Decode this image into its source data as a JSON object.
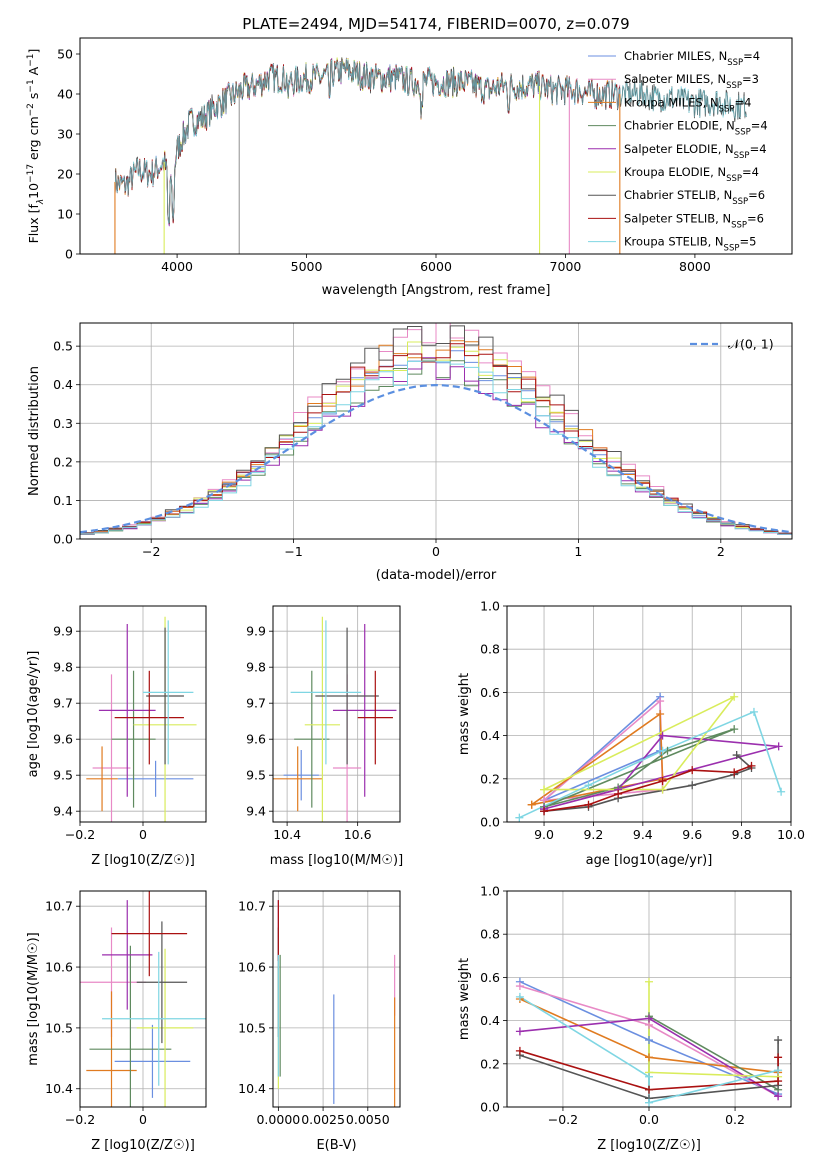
{
  "figure_title": "PLATE=2494, MJD=54174, FIBERID=0070, z=0.079",
  "colors": {
    "Chabrier MILES": "#6b8fe0",
    "Salpeter MILES": "#e88ac6",
    "Kroupa MILES": "#e07b20",
    "Chabrier ELODIE": "#5f8a5f",
    "Salpeter ELODIE": "#9b2fae",
    "Kroupa ELODIE": "#d9ec5c",
    "Chabrier STELIB": "#555555",
    "Salpeter STELIB": "#aa1111",
    "Kroupa STELIB": "#7fd6e3"
  },
  "chart_data": [
    {
      "id": "spectrum",
      "type": "line",
      "title": "PLATE=2494, MJD=54174, FIBERID=0070, z=0.079",
      "xlabel": "wavelength [Angstrom, rest frame]",
      "ylabel_parts": [
        "Flux [f",
        "λ",
        "10",
        "−17",
        " erg cm",
        "−2",
        " s",
        "−1",
        " A",
        "−1",
        "]"
      ],
      "xlim": [
        3250,
        8750
      ],
      "ylim": [
        0,
        54
      ],
      "xticks": [
        4000,
        5000,
        6000,
        7000,
        8000
      ],
      "yticks": [
        0,
        10,
        20,
        30,
        40,
        50
      ],
      "grid": false,
      "legend_position": "top-right",
      "legend": [
        {
          "label": "Chabrier MILES, N",
          "sub": "SSP",
          "value": "=4"
        },
        {
          "label": "Salpeter MILES, N",
          "sub": "SSP",
          "value": "=3"
        },
        {
          "label": "Kroupa MILES, N",
          "sub": "SSP",
          "value": "=4"
        },
        {
          "label": "Chabrier ELODIE, N",
          "sub": "SSP",
          "value": "=4"
        },
        {
          "label": "Salpeter ELODIE, N",
          "sub": "SSP",
          "value": "=4"
        },
        {
          "label": "Kroupa ELODIE, N",
          "sub": "SSP",
          "value": "=4"
        },
        {
          "label": "Chabrier STELIB, N",
          "sub": "SSP",
          "value": "=6"
        },
        {
          "label": "Salpeter STELIB, N",
          "sub": "SSP",
          "value": "=6"
        },
        {
          "label": "Kroupa STELIB, N",
          "sub": "SSP",
          "value": "=5"
        }
      ],
      "continuum": [
        [
          3520,
          18
        ],
        [
          3600,
          17
        ],
        [
          3700,
          21
        ],
        [
          3800,
          20
        ],
        [
          3900,
          23
        ],
        [
          3950,
          16
        ],
        [
          4000,
          26
        ],
        [
          4100,
          33
        ],
        [
          4200,
          34
        ],
        [
          4300,
          37
        ],
        [
          4400,
          39
        ],
        [
          4500,
          41
        ],
        [
          4600,
          42
        ],
        [
          4700,
          44
        ],
        [
          4800,
          44
        ],
        [
          4900,
          43
        ],
        [
          5000,
          44
        ],
        [
          5100,
          44
        ],
        [
          5200,
          45
        ],
        [
          5300,
          46
        ],
        [
          5400,
          45
        ],
        [
          5500,
          44
        ],
        [
          5600,
          44
        ],
        [
          5700,
          44
        ],
        [
          5800,
          43
        ],
        [
          5900,
          43
        ],
        [
          6000,
          43
        ],
        [
          6100,
          43
        ],
        [
          6200,
          43
        ],
        [
          6300,
          42
        ],
        [
          6400,
          41
        ],
        [
          6500,
          42
        ],
        [
          6600,
          42
        ],
        [
          6700,
          42
        ],
        [
          6800,
          42
        ],
        [
          6900,
          41
        ],
        [
          7000,
          41
        ],
        [
          7100,
          41
        ],
        [
          7200,
          40
        ],
        [
          7300,
          40
        ],
        [
          7400,
          40
        ],
        [
          7500,
          40
        ],
        [
          7600,
          40
        ],
        [
          7700,
          39
        ],
        [
          7800,
          39
        ],
        [
          7900,
          38
        ],
        [
          8000,
          38
        ],
        [
          8100,
          38
        ],
        [
          8200,
          38
        ],
        [
          8300,
          37
        ],
        [
          8400,
          37
        ]
      ],
      "model_ranges": [
        {
          "name": "Chabrier MILES",
          "x": [
            3520,
            7420
          ]
        },
        {
          "name": "Salpeter MILES",
          "x": [
            3520,
            7420
          ]
        },
        {
          "name": "Kroupa MILES",
          "x": [
            3520,
            7420
          ]
        },
        {
          "name": "Chabrier ELODIE",
          "x": [
            3900,
            6800
          ]
        },
        {
          "name": "Salpeter ELODIE",
          "x": [
            3900,
            6800
          ]
        },
        {
          "name": "Kroupa ELODIE",
          "x": [
            3900,
            6800
          ]
        },
        {
          "name": "Chabrier STELIB",
          "x": [
            3520,
            8400
          ]
        },
        {
          "name": "Salpeter STELIB",
          "x": [
            3520,
            7420
          ]
        },
        {
          "name": "Kroupa STELIB",
          "x": [
            3520,
            8400
          ]
        }
      ],
      "drop_lines": [
        {
          "x": 3520
        },
        {
          "x": 3900
        },
        {
          "x": 4480
        },
        {
          "x": 6800
        },
        {
          "x": 7030
        },
        {
          "x": 7420
        }
      ]
    },
    {
      "id": "residuals",
      "type": "histogram",
      "xlabel": "(data-model)/error",
      "ylabel": "Normed distribution",
      "xlim": [
        -2.5,
        2.5
      ],
      "ylim": [
        0,
        0.56
      ],
      "xticks": [
        -2,
        -1,
        0,
        1,
        2
      ],
      "yticks": [
        0.0,
        0.1,
        0.2,
        0.3,
        0.4,
        0.5
      ],
      "grid": true,
      "legend_position": "top-right",
      "legend": [
        {
          "label": "𝒩(0, 1)"
        }
      ],
      "bin_width": 0.1
    },
    {
      "id": "age_vs_Z",
      "type": "errorbar",
      "xlabel": "Z [log10(Z/Z☉)]",
      "ylabel": "age [log10(age/yr)]",
      "xlim": [
        -0.2,
        0.2
      ],
      "ylim": [
        9.37,
        9.97
      ],
      "xticks": [
        -0.2,
        0.0
      ],
      "yticks": [
        9.4,
        9.5,
        9.6,
        9.7,
        9.8,
        9.9
      ],
      "grid": true,
      "points": [
        {
          "name": "Chabrier MILES",
          "x": 0.04,
          "xerr": 0.12,
          "y": 9.49,
          "yerr": 0.05
        },
        {
          "name": "Salpeter MILES",
          "x": -0.1,
          "xerr": 0.06,
          "y": 9.52,
          "yerr": 0.26
        },
        {
          "name": "Kroupa MILES",
          "x": -0.13,
          "xerr": 0.05,
          "y": 9.49,
          "yerr": 0.09
        },
        {
          "name": "Chabrier ELODIE",
          "x": -0.03,
          "xerr": 0.07,
          "y": 9.6,
          "yerr": 0.19
        },
        {
          "name": "Salpeter ELODIE",
          "x": -0.05,
          "xerr": 0.09,
          "y": 9.68,
          "yerr": 0.24
        },
        {
          "name": "Kroupa ELODIE",
          "x": 0.07,
          "xerr": 0.1,
          "y": 9.64,
          "yerr": 0.3
        },
        {
          "name": "Chabrier STELIB",
          "x": 0.07,
          "xerr": 0.06,
          "y": 9.72,
          "yerr": 0.19
        },
        {
          "name": "Salpeter STELIB",
          "x": 0.02,
          "xerr": 0.11,
          "y": 9.66,
          "yerr": 0.13
        },
        {
          "name": "Kroupa STELIB",
          "x": 0.08,
          "xerr": 0.08,
          "y": 9.73,
          "yerr": 0.2
        }
      ]
    },
    {
      "id": "age_vs_mass",
      "type": "errorbar",
      "xlabel": "mass [log10(M/M☉)]",
      "ylabel": "",
      "xlim": [
        10.36,
        10.72
      ],
      "ylim": [
        9.37,
        9.97
      ],
      "xticks": [
        10.4,
        10.6
      ],
      "yticks": [
        9.4,
        9.5,
        9.6,
        9.7,
        9.8,
        9.9
      ],
      "grid": true,
      "points": [
        {
          "name": "Chabrier MILES",
          "x": 10.44,
          "xerr": 0.05,
          "y": 9.5,
          "yerr": 0.07
        },
        {
          "name": "Salpeter MILES",
          "x": 10.57,
          "xerr": 0.04,
          "y": 9.52,
          "yerr": 0.26
        },
        {
          "name": "Kroupa MILES",
          "x": 10.43,
          "xerr": 0.07,
          "y": 9.49,
          "yerr": 0.09
        },
        {
          "name": "Chabrier ELODIE",
          "x": 10.47,
          "xerr": 0.05,
          "y": 9.6,
          "yerr": 0.19
        },
        {
          "name": "Salpeter ELODIE",
          "x": 10.62,
          "xerr": 0.09,
          "y": 9.68,
          "yerr": 0.24
        },
        {
          "name": "Kroupa ELODIE",
          "x": 10.5,
          "xerr": 0.05,
          "y": 9.64,
          "yerr": 0.3
        },
        {
          "name": "Chabrier STELIB",
          "x": 10.57,
          "xerr": 0.09,
          "y": 9.72,
          "yerr": 0.19
        },
        {
          "name": "Salpeter STELIB",
          "x": 10.65,
          "xerr": 0.05,
          "y": 9.66,
          "yerr": 0.13
        },
        {
          "name": "Kroupa STELIB",
          "x": 10.51,
          "xerr": 0.1,
          "y": 9.73,
          "yerr": 0.2
        }
      ]
    },
    {
      "id": "weight_vs_age",
      "type": "line",
      "xlabel": "age [log10(age/yr)]",
      "ylabel": "mass weight",
      "xlim": [
        8.85,
        10.0
      ],
      "ylim": [
        0,
        1.0
      ],
      "xticks": [
        9.0,
        9.2,
        9.4,
        9.6,
        9.8,
        10.0
      ],
      "yticks": [
        0.0,
        0.2,
        0.4,
        0.6,
        0.8,
        1.0
      ],
      "grid": true,
      "series": [
        {
          "name": "Chabrier MILES",
          "x": [
            9.0,
            9.47,
            9.47,
            9.0
          ],
          "y": [
            0.1,
            0.58,
            0.33,
            0.1
          ]
        },
        {
          "name": "Salpeter MILES",
          "x": [
            9.0,
            9.47,
            9.48,
            9.0
          ],
          "y": [
            0.1,
            0.56,
            0.15,
            0.1
          ]
        },
        {
          "name": "Kroupa MILES",
          "x": [
            8.95,
            9.47,
            9.48,
            8.95
          ],
          "y": [
            0.08,
            0.5,
            0.2,
            0.08
          ]
        },
        {
          "name": "Chabrier ELODIE",
          "x": [
            9.0,
            9.3,
            9.5,
            9.77,
            9.0
          ],
          "y": [
            0.07,
            0.16,
            0.33,
            0.43,
            0.07
          ]
        },
        {
          "name": "Salpeter ELODIE",
          "x": [
            9.0,
            9.3,
            9.48,
            9.95,
            9.0
          ],
          "y": [
            0.06,
            0.15,
            0.4,
            0.35,
            0.06
          ]
        },
        {
          "name": "Kroupa ELODIE",
          "x": [
            9.0,
            9.48,
            9.77,
            9.0
          ],
          "y": [
            0.15,
            0.15,
            0.58,
            0.15
          ]
        },
        {
          "name": "Chabrier STELIB",
          "x": [
            9.0,
            9.18,
            9.3,
            9.6,
            9.77,
            9.84,
            9.78
          ],
          "y": [
            0.05,
            0.07,
            0.11,
            0.17,
            0.22,
            0.25,
            0.31
          ]
        },
        {
          "name": "Salpeter STELIB",
          "x": [
            9.0,
            9.18,
            9.3,
            9.48,
            9.6,
            9.77,
            9.84
          ],
          "y": [
            0.05,
            0.08,
            0.13,
            0.19,
            0.24,
            0.23,
            0.26
          ]
        },
        {
          "name": "Kroupa STELIB",
          "x": [
            8.9,
            9.18,
            9.48,
            9.85,
            9.96
          ],
          "y": [
            0.02,
            0.17,
            0.33,
            0.51,
            0.14
          ]
        }
      ]
    },
    {
      "id": "mass_vs_Z",
      "type": "errorbar",
      "xlabel": "Z [log10(Z/Z☉)]",
      "ylabel": "mass [log10(M/M☉)]",
      "xlim": [
        -0.2,
        0.2
      ],
      "ylim": [
        10.37,
        10.725
      ],
      "xticks": [
        -0.2,
        0.0
      ],
      "yticks": [
        10.4,
        10.5,
        10.6,
        10.7
      ],
      "grid": true,
      "points": [
        {
          "name": "Chabrier MILES",
          "x": 0.03,
          "xerr": 0.12,
          "y": 10.445,
          "yerr": 0.06
        },
        {
          "name": "Salpeter MILES",
          "x": -0.1,
          "xerr": 0.11,
          "y": 10.575,
          "yerr": 0.09
        },
        {
          "name": "Kroupa MILES",
          "x": -0.1,
          "xerr": 0.08,
          "y": 10.43,
          "yerr": 0.13
        },
        {
          "name": "Chabrier ELODIE",
          "x": -0.04,
          "xerr": 0.13,
          "y": 10.465,
          "yerr": 0.17
        },
        {
          "name": "Salpeter ELODIE",
          "x": -0.05,
          "xerr": 0.08,
          "y": 10.62,
          "yerr": 0.09
        },
        {
          "name": "Kroupa ELODIE",
          "x": 0.07,
          "xerr": 0.09,
          "y": 10.5,
          "yerr": 0.13
        },
        {
          "name": "Chabrier STELIB",
          "x": 0.06,
          "xerr": 0.08,
          "y": 10.575,
          "yerr": 0.1
        },
        {
          "name": "Salpeter STELIB",
          "x": 0.02,
          "xerr": 0.12,
          "y": 10.655,
          "yerr": 0.07
        },
        {
          "name": "Kroupa STELIB",
          "x": 0.05,
          "xerr": 0.18,
          "y": 10.515,
          "yerr": 0.11
        }
      ]
    },
    {
      "id": "mass_vs_ebv",
      "type": "errorbar",
      "xlabel": "E(B-V)",
      "ylabel": "",
      "xlim": [
        -0.0003,
        0.0068
      ],
      "ylim": [
        10.37,
        10.725
      ],
      "xticks": [
        0.0,
        0.0025,
        0.005
      ],
      "xtick_labels": [
        "0.0000",
        "0.0025",
        "0.0050"
      ],
      "yticks": [
        10.4,
        10.5,
        10.6,
        10.7
      ],
      "grid": true,
      "points": [
        {
          "name": "Chabrier MILES",
          "x": 0.0031,
          "y": 10.465,
          "yerr": 0.09
        },
        {
          "name": "Salpeter MILES",
          "x": 0.0065,
          "y": 10.57,
          "yerr": 0.05
        },
        {
          "name": "Kroupa MILES",
          "x": 0.0065,
          "y": 10.46,
          "yerr": 0.09
        },
        {
          "name": "Chabrier ELODIE",
          "x": 0.0001,
          "y": 10.52,
          "yerr": 0.1
        },
        {
          "name": "Salpeter ELODIE",
          "x": 0.0,
          "y": 10.66,
          "yerr": 0.05
        },
        {
          "name": "Kroupa ELODIE",
          "x": 0.0,
          "y": 10.5,
          "yerr": 0.1
        },
        {
          "name": "Chabrier STELIB",
          "x": 0.0,
          "y": 10.575,
          "yerr": 0.09
        },
        {
          "name": "Salpeter STELIB",
          "x": 0.0,
          "y": 10.66,
          "yerr": 0.05
        },
        {
          "name": "Kroupa STELIB",
          "x": 0.0,
          "y": 10.52,
          "yerr": 0.1
        }
      ]
    },
    {
      "id": "weight_vs_Z",
      "type": "line",
      "xlabel": "Z [log10(Z/Z☉)]",
      "ylabel": "mass weight",
      "xlim": [
        -0.33,
        0.33
      ],
      "ylim": [
        0,
        1.0
      ],
      "xticks": [
        -0.2,
        0.0,
        0.2
      ],
      "yticks": [
        0.0,
        0.2,
        0.4,
        0.6,
        0.8,
        1.0
      ],
      "grid": true,
      "series": [
        {
          "name": "Chabrier MILES",
          "x": [
            -0.3,
            0.0,
            0.3
          ],
          "y": [
            0.58,
            0.31,
            0.06
          ]
        },
        {
          "name": "Salpeter MILES",
          "x": [
            -0.3,
            0.0,
            0.3
          ],
          "y": [
            0.56,
            0.38,
            0.05
          ]
        },
        {
          "name": "Kroupa MILES",
          "x": [
            -0.3,
            0.0,
            0.3
          ],
          "y": [
            0.5,
            0.23,
            0.16
          ]
        },
        {
          "name": "Chabrier ELODIE",
          "x": [
            0.0,
            0.0,
            0.3
          ],
          "y": [
            0.08,
            0.42,
            0.08
          ]
        },
        {
          "name": "Salpeter ELODIE",
          "x": [
            -0.3,
            0.0,
            0.3
          ],
          "y": [
            0.35,
            0.41,
            0.05
          ]
        },
        {
          "name": "Kroupa ELODIE",
          "x": [
            0.0,
            0.0,
            0.3
          ],
          "y": [
            0.58,
            0.16,
            0.14
          ]
        },
        {
          "name": "Chabrier STELIB",
          "x": [
            -0.3,
            0.0,
            0.3,
            0.3
          ],
          "y": [
            0.24,
            0.04,
            0.1,
            0.31
          ]
        },
        {
          "name": "Salpeter STELIB",
          "x": [
            -0.3,
            0.0,
            0.3,
            0.3
          ],
          "y": [
            0.26,
            0.08,
            0.12,
            0.23
          ]
        },
        {
          "name": "Kroupa STELIB",
          "x": [
            -0.3,
            0.0,
            0.0,
            0.3
          ],
          "y": [
            0.51,
            0.14,
            0.02,
            0.17
          ]
        }
      ]
    }
  ]
}
